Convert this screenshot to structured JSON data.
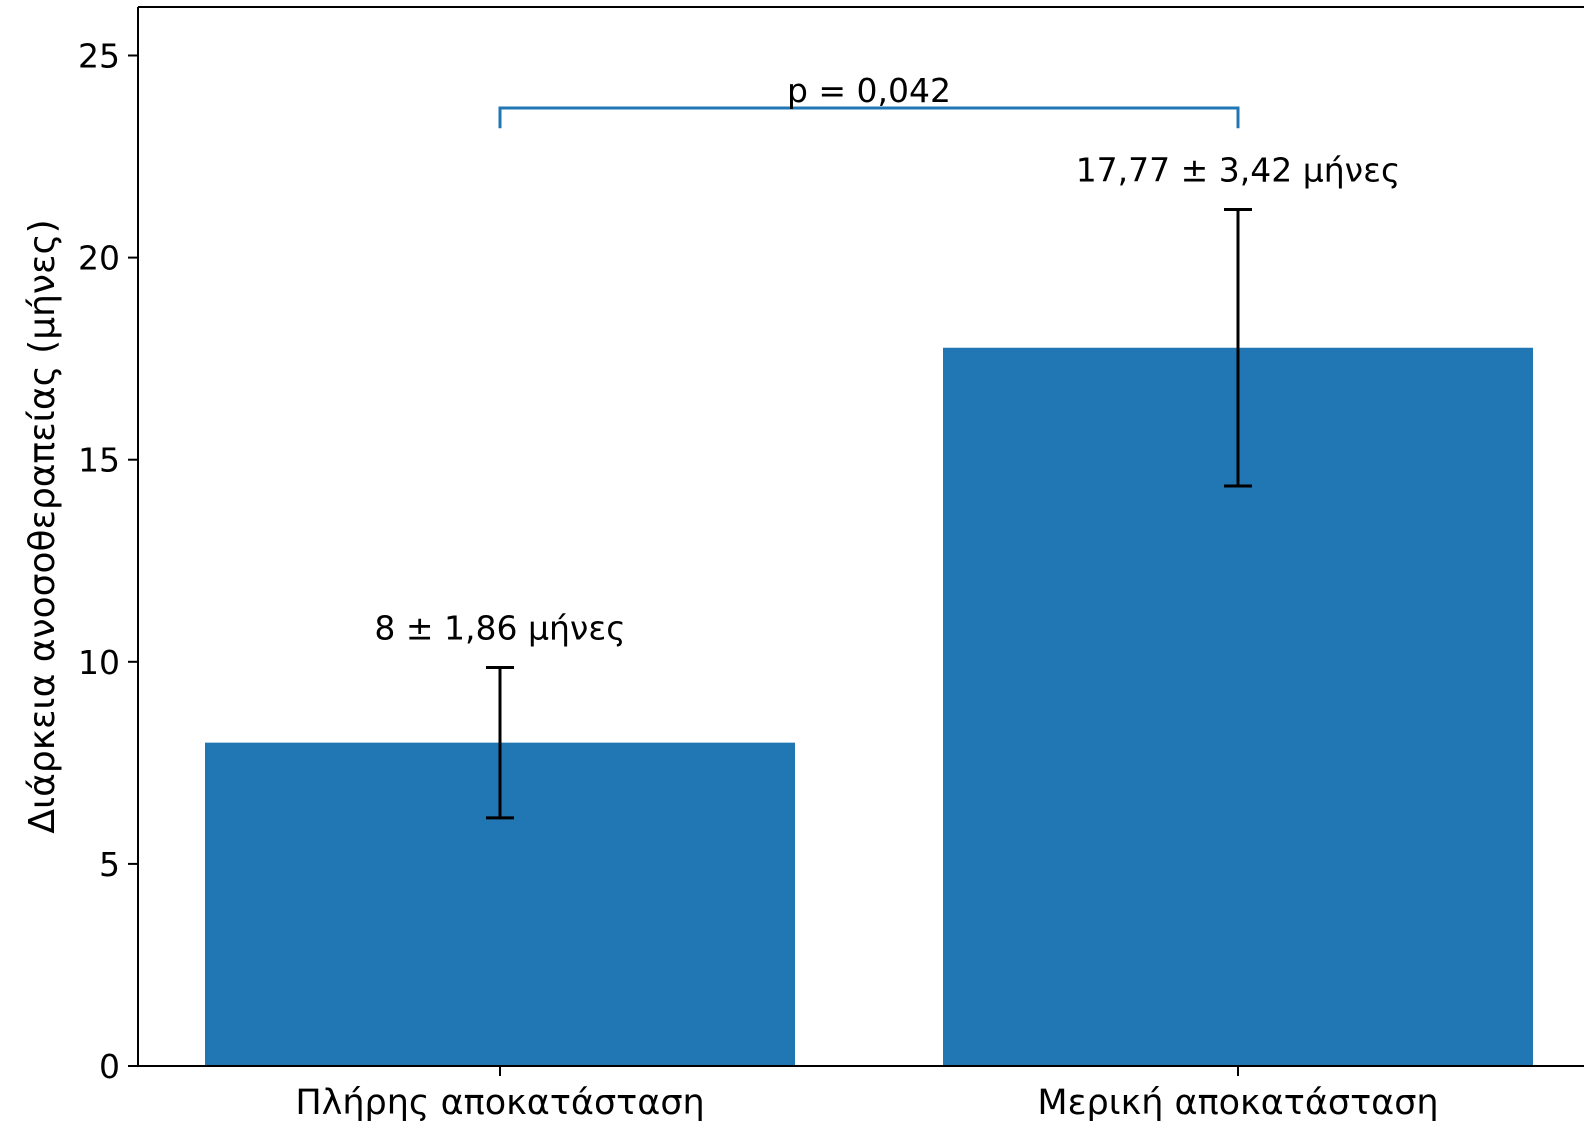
{
  "chart_data": {
    "type": "bar",
    "categories": [
      "Πλήρης αποκατάσταση",
      "Μερική αποκατάσταση"
    ],
    "values": [
      8,
      17.77
    ],
    "errors": [
      1.86,
      3.42
    ],
    "bar_labels": [
      "8 ± 1,86 μήνες",
      "17,77 ± 3,42 μήνες"
    ],
    "title": "",
    "xlabel": "",
    "ylabel": "Διάρκεια ανοσοθεραπείας (μήνες)",
    "ylim": [
      0,
      26.2
    ],
    "yticks": [
      {
        "value": 0,
        "label": "0"
      },
      {
        "value": 5,
        "label": "5"
      },
      {
        "value": 10,
        "label": "10"
      },
      {
        "value": 15,
        "label": "15"
      },
      {
        "value": 20,
        "label": "20"
      },
      {
        "value": 25,
        "label": "25"
      }
    ],
    "significance": {
      "label": "p = 0,042",
      "between": [
        0,
        1
      ],
      "level": 23.7,
      "drop": 0.5
    },
    "grid": false,
    "colors": {
      "bar": "#2077b4",
      "bracket": "#2077b4",
      "errorbar": "#000000",
      "axis": "#000000",
      "text": "#000000"
    }
  }
}
